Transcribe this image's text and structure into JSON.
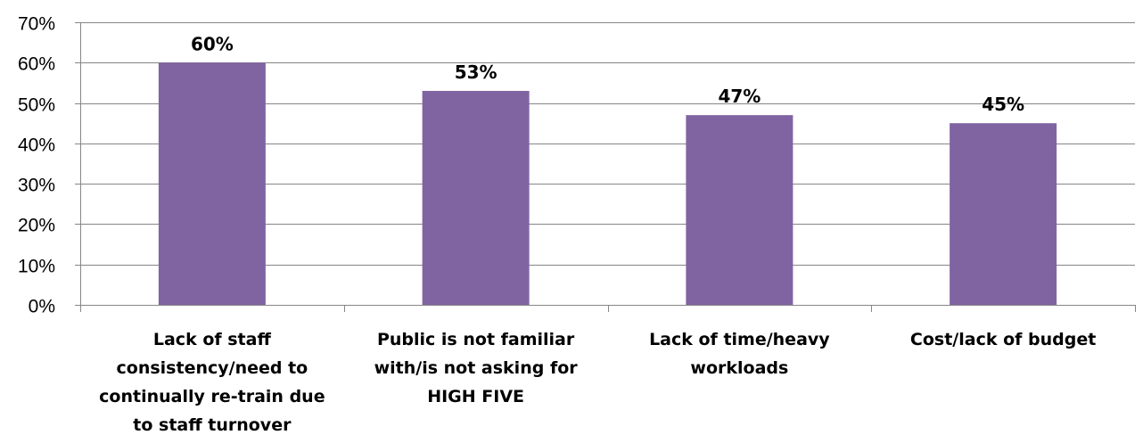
{
  "chart_data": {
    "type": "bar",
    "categories": [
      [
        "Lack of staff",
        "consistency/need to",
        "continually re-train due",
        "to staff turnover"
      ],
      [
        "Public is not familiar",
        "with/is not asking for",
        "HIGH FIVE"
      ],
      [
        "Lack of time/heavy",
        "workloads"
      ],
      [
        "Cost/lack of budget"
      ]
    ],
    "values": [
      60,
      53,
      47,
      45
    ],
    "data_labels": [
      "60%",
      "53%",
      "47%",
      "45%"
    ],
    "ylim": [
      0,
      70
    ],
    "yticks": [
      0,
      10,
      20,
      30,
      40,
      50,
      60,
      70
    ],
    "ytick_labels": [
      "0%",
      "10%",
      "20%",
      "30%",
      "40%",
      "50%",
      "60%",
      "70%"
    ],
    "title": "",
    "xlabel": "",
    "ylabel": "",
    "grid": true,
    "legend": "none",
    "colors": {
      "bar": "#8064A2",
      "gridline": "#868686",
      "axis": "#868686",
      "text": "#000000"
    }
  }
}
